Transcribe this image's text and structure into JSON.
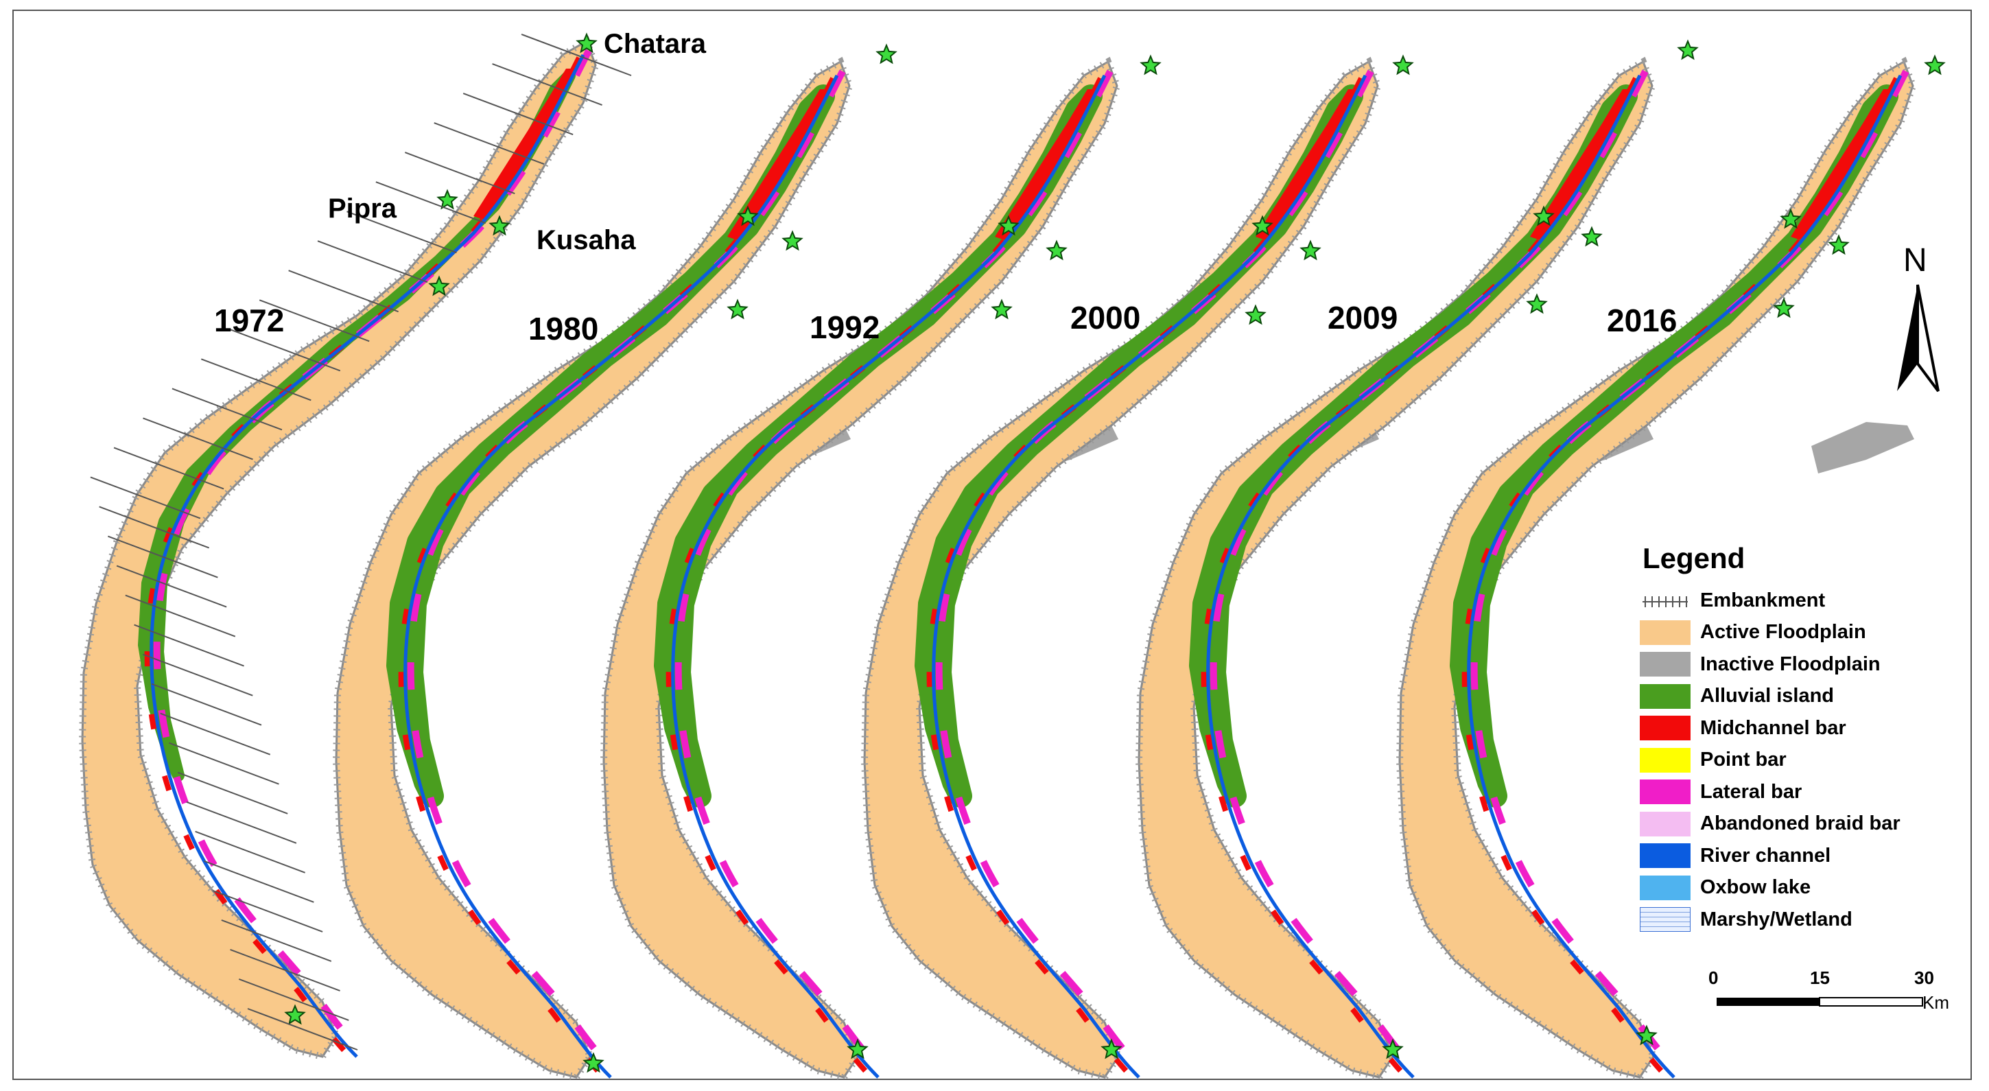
{
  "map": {
    "years": [
      "1972",
      "1980",
      "1992",
      "2000",
      "2009",
      "2016"
    ],
    "places": {
      "chatara": "Chatara",
      "pipra": "Pipra",
      "kusaha": "Kusaha"
    },
    "colors": {
      "active_floodplain": "#f9c98a",
      "inactive_floodplain": "#a6a6a6",
      "alluvial_island": "#4a9e1f",
      "midchannel_bar": "#f20a0a",
      "point_bar": "#ffff00",
      "lateral_bar": "#f01ec8",
      "abandoned_braid_bar": "#f4bdf2",
      "river_channel": "#0b5ce0",
      "oxbow_lake": "#4fb3ef",
      "marshy_wetland": "#e8f0ff",
      "station_star": "#3ddc3d"
    }
  },
  "legend": {
    "title": "Legend",
    "items": [
      {
        "label": "Embankment",
        "icon": "embankment-line"
      },
      {
        "label": "Active Floodplain",
        "color": "#f9c98a"
      },
      {
        "label": "Inactive Floodplain",
        "color": "#a6a6a6"
      },
      {
        "label": "Alluvial island",
        "color": "#4a9e1f"
      },
      {
        "label": "Midchannel bar",
        "color": "#f20a0a"
      },
      {
        "label": "Point bar",
        "color": "#ffff00"
      },
      {
        "label": "Lateral bar",
        "color": "#f01ec8"
      },
      {
        "label": "Abandoned braid bar",
        "color": "#f4bdf2"
      },
      {
        "label": "River channel",
        "color": "#0b5ce0"
      },
      {
        "label": "Oxbow lake",
        "color": "#4fb3ef"
      },
      {
        "label": "Marshy/Wetland",
        "color": "#e8f0ff",
        "icon": "wetland-pattern"
      }
    ]
  },
  "north_arrow": {
    "letter": "N"
  },
  "scale_bar": {
    "ticks": [
      "0",
      "15",
      "30"
    ],
    "unit": "Km"
  }
}
